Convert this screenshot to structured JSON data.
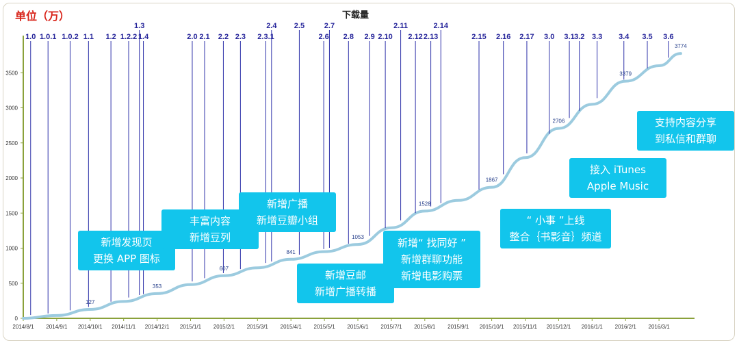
{
  "unit_label": "单位（万）",
  "chart_data": {
    "type": "line",
    "title": "下载量",
    "ylim": [
      0,
      3900
    ],
    "y_ticks": [
      0,
      500,
      1000,
      1500,
      2000,
      2500,
      3000,
      3500
    ],
    "x_ticks": [
      "2014/8/1",
      "2014/9/1",
      "2014/10/1",
      "2014/11/1",
      "2014/12/1",
      "2015/1/1",
      "2015/2/1",
      "2015/3/1",
      "2015/4/1",
      "2015/5/1",
      "2015/6/1",
      "2015/7/1",
      "2015/8/1",
      "2015/9/1",
      "2015/10/1",
      "2015/11/1",
      "2015/12/1",
      "2016/1/1",
      "2016/2/1",
      "2016/3/1"
    ],
    "series": [
      {
        "color": "#9ccbdf",
        "points": [
          [
            "2014/8/1",
            0
          ],
          [
            "2014/9/1",
            40
          ],
          [
            "2014/10/1",
            127
          ],
          [
            "2014/11/1",
            240
          ],
          [
            "2014/12/1",
            353
          ],
          [
            "2015/1/1",
            480
          ],
          [
            "2015/2/1",
            607
          ],
          [
            "2015/3/1",
            720
          ],
          [
            "2015/4/1",
            841
          ],
          [
            "2015/5/1",
            950
          ],
          [
            "2015/6/1",
            1053
          ],
          [
            "2015/7/1",
            1290
          ],
          [
            "2015/8/1",
            1528
          ],
          [
            "2015/9/1",
            1680
          ],
          [
            "2015/10/1",
            1867
          ],
          [
            "2015/11/1",
            2290
          ],
          [
            "2015/12/1",
            2706
          ],
          [
            "2016/1/1",
            3050
          ],
          [
            "2016/2/1",
            3379
          ],
          [
            "2016/3/1",
            3600
          ],
          [
            "2016/4/1",
            3774
          ]
        ]
      }
    ],
    "data_labels": [
      {
        "x": "2014/10/1",
        "value": 127,
        "text": "127"
      },
      {
        "x": "2014/12/1",
        "value": 353,
        "text": "353"
      },
      {
        "x": "2015/2/1",
        "value": 607,
        "text": "607"
      },
      {
        "x": "2015/4/1",
        "value": 841,
        "text": "841"
      },
      {
        "x": "2015/6/1",
        "value": 1053,
        "text": "1053"
      },
      {
        "x": "2015/8/1",
        "value": 1528,
        "text": "1528"
      },
      {
        "x": "2015/10/1",
        "value": 1867,
        "text": "1867"
      },
      {
        "x": "2015/12/1",
        "value": 2706,
        "text": "2706"
      },
      {
        "x": "2016/2/1",
        "value": 3379,
        "text": "3379"
      },
      {
        "x": "2016/4/1",
        "value": 3774,
        "text": "3774"
      }
    ],
    "versions": [
      {
        "label": "1.0",
        "x": 0.22,
        "row": 0
      },
      {
        "label": "1.0.1",
        "x": 0.74,
        "row": 0
      },
      {
        "label": "1.0.2",
        "x": 1.4,
        "row": 0
      },
      {
        "label": "1.1",
        "x": 1.95,
        "row": 0
      },
      {
        "label": "1.2",
        "x": 2.62,
        "row": 0
      },
      {
        "label": "1.2.2",
        "x": 3.15,
        "row": 0
      },
      {
        "label": "1.3",
        "x": 3.47,
        "row": 1
      },
      {
        "label": "1.4",
        "x": 3.59,
        "row": 0
      },
      {
        "label": "2.0",
        "x": 5.05,
        "row": 0
      },
      {
        "label": "2.1",
        "x": 5.42,
        "row": 0
      },
      {
        "label": "2.2",
        "x": 5.98,
        "row": 0
      },
      {
        "label": "2.3",
        "x": 6.49,
        "row": 0
      },
      {
        "label": "2.3.1",
        "x": 7.25,
        "row": 0
      },
      {
        "label": "2.4",
        "x": 7.42,
        "row": 1
      },
      {
        "label": "2.5",
        "x": 8.25,
        "row": 1
      },
      {
        "label": "2.6",
        "x": 8.98,
        "row": 0
      },
      {
        "label": "2.7",
        "x": 9.15,
        "row": 1
      },
      {
        "label": "2.8",
        "x": 9.72,
        "row": 0
      },
      {
        "label": "2.9",
        "x": 10.35,
        "row": 0
      },
      {
        "label": "2.10",
        "x": 10.82,
        "row": 0
      },
      {
        "label": "2.11",
        "x": 11.28,
        "row": 1
      },
      {
        "label": "2.12",
        "x": 11.72,
        "row": 0
      },
      {
        "label": "2.13",
        "x": 12.18,
        "row": 0
      },
      {
        "label": "2.14",
        "x": 12.48,
        "row": 1
      },
      {
        "label": "2.15",
        "x": 13.62,
        "row": 0
      },
      {
        "label": "2.16",
        "x": 14.35,
        "row": 0
      },
      {
        "label": "2.17",
        "x": 15.05,
        "row": 0
      },
      {
        "label": "3.0",
        "x": 15.72,
        "row": 0
      },
      {
        "label": "3.1",
        "x": 16.32,
        "row": 0
      },
      {
        "label": "3.2",
        "x": 16.62,
        "row": 0
      },
      {
        "label": "3.3",
        "x": 17.15,
        "row": 0
      },
      {
        "label": "3.4",
        "x": 17.95,
        "row": 0
      },
      {
        "label": "3.5",
        "x": 18.65,
        "row": 0
      },
      {
        "label": "3.6",
        "x": 19.28,
        "row": 0
      }
    ]
  },
  "annotations": [
    {
      "lines": [
        "新增发现页",
        "更换 APP 图标"
      ]
    },
    {
      "lines": [
        "丰富内容",
        "新增豆列"
      ]
    },
    {
      "lines": [
        "新增广播",
        "新增豆瓣小组"
      ]
    },
    {
      "lines": [
        "新增豆邮",
        "新增广播转播"
      ]
    },
    {
      "lines": [
        "新增“ 找同好 ”",
        "新增群聊功能",
        "新增电影购票"
      ]
    },
    {
      "lines": [
        "“ 小事 ”上线",
        "整合｛书影音｝频道"
      ]
    },
    {
      "lines": [
        "接入 iTunes",
        "Apple Music"
      ]
    },
    {
      "lines": [
        "支持内容分享",
        "到私信和群聊"
      ]
    }
  ],
  "colors": {
    "axis": "#8aa13a",
    "version_line": "#2b2fa8",
    "version_label": "#25249a",
    "curve": "#9ccbdf",
    "annotation_bg": "#12c5ec",
    "unit_label": "#d9261c"
  }
}
